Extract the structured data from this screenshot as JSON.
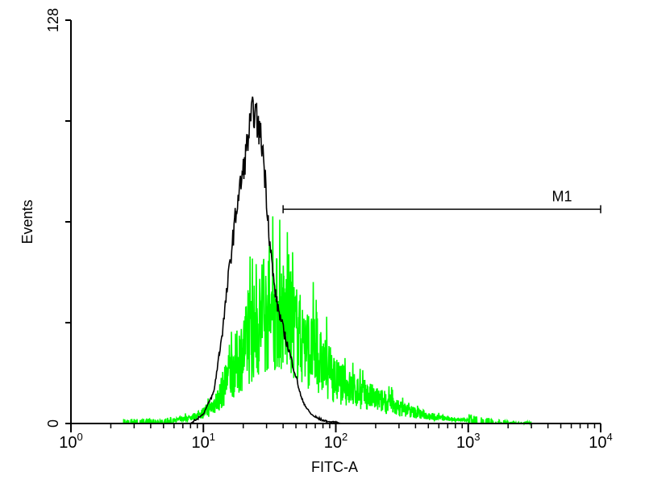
{
  "chart_data": {
    "type": "line",
    "xlabel": "FITC-A",
    "ylabel": "Events",
    "x_scale": "log",
    "xlim": [
      1,
      10000
    ],
    "ylim": [
      0,
      128
    ],
    "x_ticks": [
      {
        "value": 1,
        "base": "10",
        "exp": "0"
      },
      {
        "value": 10,
        "base": "10",
        "exp": "1"
      },
      {
        "value": 100,
        "base": "10",
        "exp": "2"
      },
      {
        "value": 1000,
        "base": "10",
        "exp": "3"
      },
      {
        "value": 10000,
        "base": "10",
        "exp": "4"
      }
    ],
    "y_ticks": [
      {
        "value": 0,
        "label": "0"
      },
      {
        "value": 128,
        "label": "128"
      }
    ],
    "grid": false,
    "series": [
      {
        "color": "#000000",
        "style": "outline",
        "x": [
          8,
          10,
          12,
          14,
          16,
          18,
          20,
          22,
          24,
          26,
          28,
          30,
          32,
          34,
          36,
          40,
          45,
          50,
          55,
          60,
          65,
          70,
          80,
          90,
          100,
          110
        ],
        "y": [
          0,
          3,
          10,
          30,
          52,
          70,
          80,
          92,
          100,
          94,
          88,
          72,
          56,
          45,
          38,
          30,
          22,
          15,
          8,
          5,
          3,
          2,
          1,
          0.5,
          0.5,
          0
        ]
      },
      {
        "color": "#00ff00",
        "style": "noisy-fill",
        "x": [
          2.5,
          5,
          7,
          9,
          11,
          13,
          15,
          18,
          22,
          26,
          30,
          35,
          40,
          45,
          50,
          55,
          60,
          70,
          80,
          90,
          100,
          120,
          150,
          200,
          250,
          300,
          400,
          500,
          700,
          1000,
          1500,
          2000,
          3000
        ],
        "y": [
          0.5,
          0.5,
          1.5,
          2.5,
          4.5,
          8,
          14,
          20,
          27,
          32,
          35,
          36,
          35,
          33,
          30,
          27,
          25,
          22,
          19,
          16.5,
          14,
          12,
          10,
          8,
          6.5,
          5,
          3.5,
          2.5,
          1.5,
          1,
          0.5,
          0.3,
          0.2
        ]
      }
    ],
    "gate": {
      "label": "M1",
      "x_start": 40,
      "x_end": 10000,
      "y": 68
    }
  }
}
